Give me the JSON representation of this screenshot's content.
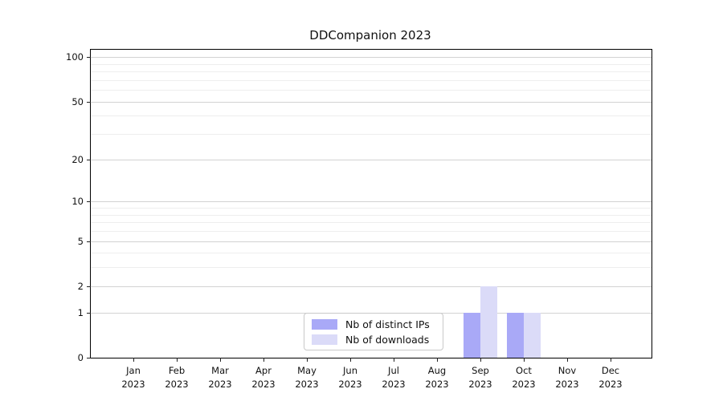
{
  "chart_data": {
    "type": "bar",
    "title": "DDCompanion 2023",
    "categories": [
      "Jan 2023",
      "Feb 2023",
      "Mar 2023",
      "Apr 2023",
      "May 2023",
      "Jun 2023",
      "Jul 2023",
      "Aug 2023",
      "Sep 2023",
      "Oct 2023",
      "Nov 2023",
      "Dec 2023"
    ],
    "series": [
      {
        "name": "Nb of distinct IPs",
        "color": "#a9a9f7",
        "values": [
          0,
          0,
          0,
          0,
          0,
          0,
          0,
          0,
          1,
          1,
          0,
          0
        ]
      },
      {
        "name": "Nb of downloads",
        "color": "#dbdbf8",
        "values": [
          0,
          0,
          0,
          0,
          0,
          0,
          0,
          0,
          2,
          1,
          0,
          0
        ]
      }
    ],
    "xlabel": "",
    "ylabel": "",
    "y_scale": "log1p",
    "ylim": [
      0,
      112
    ],
    "y_ticks": [
      0,
      1,
      2,
      5,
      10,
      20,
      50,
      100
    ],
    "y_minor_gridlines": [
      3,
      4,
      6,
      7,
      8,
      9,
      30,
      40,
      60,
      70,
      80,
      90
    ],
    "grid": "horizontal major and minor gridlines",
    "legend_position": "lower center",
    "colors": {
      "major_gridline": "#d2d2d2",
      "minor_gridline": "#eeeeee",
      "axis": "#000000",
      "text": "#111111"
    }
  }
}
